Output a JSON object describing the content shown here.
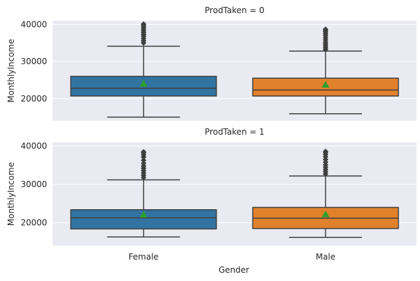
{
  "chart_data": {
    "type": "box",
    "xlabel": "Gender",
    "categories": [
      "Female",
      "Male"
    ],
    "colors": [
      "#3274a1",
      "#e1812c"
    ],
    "mean_marker_color": "#2ca02c",
    "panels": [
      {
        "title": "ProdTaken = 0",
        "ylabel": "MonthlyIncome",
        "ylim": [
          14000,
          41000
        ],
        "yticks": [
          20000,
          30000,
          40000
        ],
        "boxes": [
          {
            "category": "Female",
            "whisker_low": 15000,
            "q1": 20700,
            "median": 22800,
            "q3": 26000,
            "whisker_high": 34100,
            "mean": 24000,
            "outliers": [
              35000,
              35600,
              36200,
              36800,
              37300,
              37800,
              38300,
              38800,
              39300,
              39800,
              40100
            ]
          },
          {
            "category": "Male",
            "whisker_low": 15900,
            "q1": 20700,
            "median": 22300,
            "q3": 25500,
            "whisker_high": 32800,
            "mean": 23700,
            "outliers": [
              33200,
              33700,
              34200,
              34700,
              35200,
              35800,
              36400,
              37000,
              37500,
              38000,
              38400,
              38700
            ]
          }
        ]
      },
      {
        "title": "ProdTaken = 1",
        "ylabel": "MonthlyIncome",
        "ylim": [
          14000,
          41000
        ],
        "yticks": [
          20000,
          30000,
          40000
        ],
        "boxes": [
          {
            "category": "Female",
            "whisker_low": 16300,
            "q1": 18400,
            "median": 21300,
            "q3": 23400,
            "whisker_high": 31200,
            "mean": 22100,
            "outliers": [
              31800,
              32400,
              33000,
              33600,
              34200,
              34800,
              35500,
              36300,
              37100,
              37700,
              38200,
              38500
            ]
          },
          {
            "category": "Male",
            "whisker_low": 16200,
            "q1": 18500,
            "median": 21200,
            "q3": 24000,
            "whisker_high": 32200,
            "mean": 22200,
            "outliers": [
              32700,
              33300,
              33900,
              34500,
              35100,
              35800,
              36500,
              37200,
              37800,
              38300,
              38600
            ]
          }
        ]
      }
    ]
  }
}
